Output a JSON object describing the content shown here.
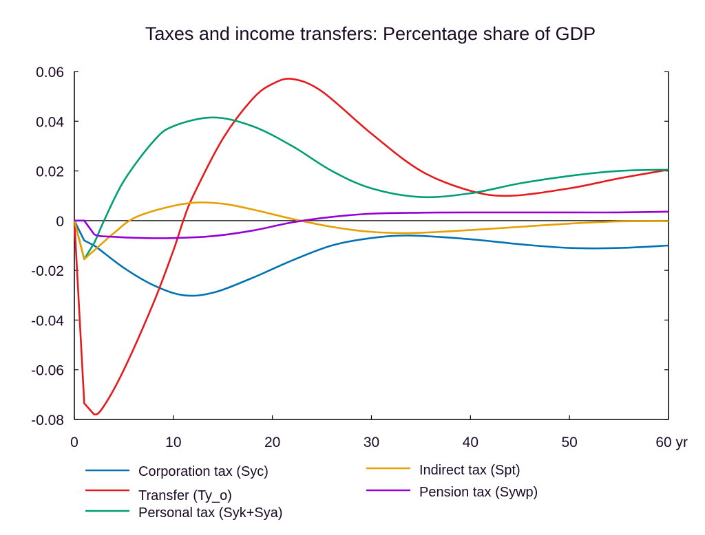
{
  "chart_data": {
    "type": "line",
    "title": "Taxes and income transfers: Percentage share of GDP",
    "xlabel": "",
    "ylabel": "",
    "x_unit_label": "yr",
    "xlim": [
      0,
      60
    ],
    "ylim": [
      -0.08,
      0.06
    ],
    "x_ticks": [
      0,
      10,
      20,
      30,
      40,
      50,
      60
    ],
    "x_tick_labels": [
      "0",
      "10",
      "20",
      "30",
      "40",
      "50",
      "60 yr"
    ],
    "y_ticks": [
      -0.08,
      -0.06,
      -0.04,
      -0.02,
      0,
      0.02,
      0.04,
      0.06
    ],
    "y_tick_labels": [
      "-0.08",
      "-0.06",
      "-0.04",
      "-0.02",
      "0",
      "0.02",
      "0.04",
      "0.06"
    ],
    "grid": false,
    "zero_line": true,
    "legend_position": "bottom",
    "series": [
      {
        "name": "Corporation tax (Syc)",
        "color": "#0072b2",
        "x": [
          0,
          1,
          2,
          5,
          8,
          11,
          14,
          18,
          22,
          26,
          30,
          34,
          40,
          45,
          50,
          55,
          60
        ],
        "values": [
          0,
          -0.008,
          -0.01,
          -0.019,
          -0.026,
          -0.03,
          -0.029,
          -0.023,
          -0.016,
          -0.01,
          -0.007,
          -0.006,
          -0.0075,
          -0.0095,
          -0.011,
          -0.011,
          -0.01
        ]
      },
      {
        "name": "Transfer (Ty_o)",
        "color": "#e41a1c",
        "x": [
          0,
          1,
          2,
          3,
          5,
          8,
          10,
          11,
          12,
          15,
          18,
          20,
          22,
          25,
          30,
          35,
          40,
          44,
          50,
          55,
          60
        ],
        "values": [
          0,
          -0.0735,
          -0.078,
          -0.0745,
          -0.06,
          -0.033,
          -0.012,
          0,
          0.01,
          0.033,
          0.049,
          0.055,
          0.057,
          0.052,
          0.035,
          0.02,
          0.012,
          0.01,
          0.013,
          0.017,
          0.0205
        ]
      },
      {
        "name": "Personal tax (Syk+Sya)",
        "color": "#009e73",
        "x": [
          0,
          1,
          2,
          3,
          5,
          8,
          10,
          14,
          18,
          22,
          26,
          30,
          35,
          40,
          45,
          50,
          55,
          60
        ],
        "values": [
          0,
          -0.0155,
          -0.009,
          0,
          0.016,
          0.032,
          0.038,
          0.0415,
          0.038,
          0.03,
          0.02,
          0.013,
          0.0095,
          0.011,
          0.015,
          0.018,
          0.02,
          0.0205
        ]
      },
      {
        "name": "Indirect tax (Spt)",
        "color": "#e69f00",
        "x": [
          0,
          1,
          2,
          4,
          6,
          9,
          12,
          15,
          18,
          22,
          26,
          30,
          34,
          40,
          45,
          50,
          55,
          60
        ],
        "values": [
          0,
          -0.0155,
          -0.012,
          -0.005,
          0.001,
          0.005,
          0.0072,
          0.0068,
          0.0045,
          0.0007,
          -0.0025,
          -0.0045,
          -0.005,
          -0.0038,
          -0.0025,
          -0.0012,
          -0.0003,
          -0.0002
        ]
      },
      {
        "name": "Pension tax (Sywp)",
        "color": "#9400d3",
        "x": [
          0,
          1,
          2,
          4,
          7,
          10,
          14,
          18,
          22,
          26,
          30,
          35,
          40,
          50,
          55,
          60
        ],
        "values": [
          0,
          0,
          -0.0055,
          -0.0065,
          -0.007,
          -0.007,
          -0.0062,
          -0.004,
          -0.0007,
          0.0015,
          0.0028,
          0.0032,
          0.0033,
          0.0033,
          0.0033,
          0.0036
        ]
      }
    ]
  }
}
